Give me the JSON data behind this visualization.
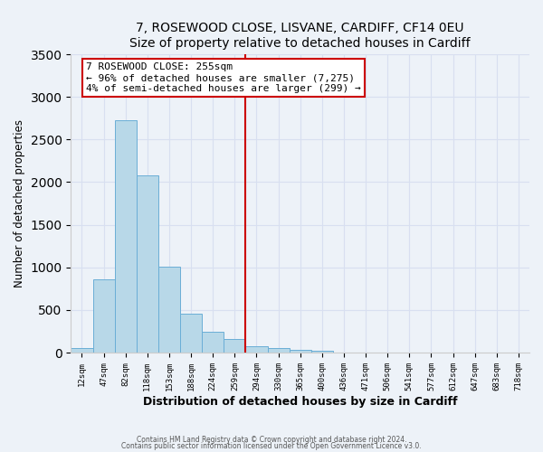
{
  "title": "7, ROSEWOOD CLOSE, LISVANE, CARDIFF, CF14 0EU",
  "subtitle": "Size of property relative to detached houses in Cardiff",
  "xlabel": "Distribution of detached houses by size in Cardiff",
  "ylabel": "Number of detached properties",
  "bar_values": [
    55,
    855,
    2730,
    2075,
    1010,
    460,
    240,
    155,
    75,
    55,
    30,
    20,
    0,
    0,
    0,
    0,
    0,
    0,
    0,
    0,
    0
  ],
  "tick_labels": [
    "12sqm",
    "47sqm",
    "82sqm",
    "118sqm",
    "153sqm",
    "188sqm",
    "224sqm",
    "259sqm",
    "294sqm",
    "330sqm",
    "365sqm",
    "400sqm",
    "436sqm",
    "471sqm",
    "506sqm",
    "541sqm",
    "577sqm",
    "612sqm",
    "647sqm",
    "683sqm",
    "718sqm"
  ],
  "bar_color": "#b8d8e8",
  "bar_edge_color": "#6aaed6",
  "bg_color": "#edf2f8",
  "grid_color": "#d8dff0",
  "vline_color": "#cc0000",
  "annotation_title": "7 ROSEWOOD CLOSE: 255sqm",
  "annotation_line1": "← 96% of detached houses are smaller (7,275)",
  "annotation_line2": "4% of semi-detached houses are larger (299) →",
  "annotation_box_color": "#ffffff",
  "annotation_border_color": "#cc0000",
  "ylim": [
    0,
    3500
  ],
  "footer1": "Contains HM Land Registry data © Crown copyright and database right 2024.",
  "footer2": "Contains public sector information licensed under the Open Government Licence v3.0.",
  "num_bars": 21,
  "vline_pos": 7.5
}
